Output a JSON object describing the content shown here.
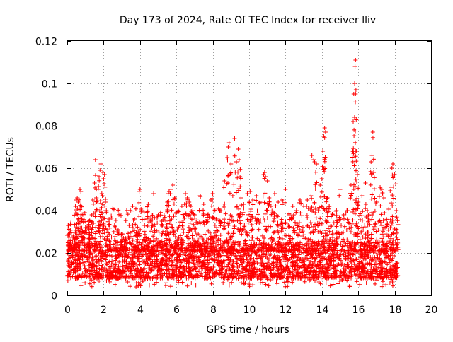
{
  "chart_data": {
    "type": "scatter",
    "title": "Day 173 of 2024, Rate Of TEC Index for receiver lliv",
    "xlabel": "GPS time / hours",
    "ylabel": "ROTI / TECUs",
    "xlim": [
      0,
      20
    ],
    "ylim": [
      0,
      0.12
    ],
    "xticks": [
      0,
      2,
      4,
      6,
      8,
      10,
      12,
      14,
      16,
      18,
      20
    ],
    "xtick_labels": [
      "0",
      "2",
      "4",
      "6",
      "8",
      "10",
      "12",
      "14",
      "16",
      "18",
      "20"
    ],
    "yticks": [
      0,
      0.02,
      0.04,
      0.06,
      0.08,
      0.1,
      0.12
    ],
    "ytick_labels": [
      "0",
      "0.02",
      "0.04",
      "0.06",
      "0.08",
      "0.1",
      "0.12"
    ],
    "grid": true,
    "marker": "+",
    "color": "#ff0000",
    "series": [
      {
        "name": "ROTI",
        "x_range": [
          0,
          18.2
        ],
        "baseline_band": [
          0.008,
          0.025
        ],
        "points": [
          [
            0.05,
            0.033
          ],
          [
            0.1,
            0.031
          ],
          [
            0.2,
            0.022
          ],
          [
            0.35,
            0.028
          ],
          [
            0.45,
            0.042
          ],
          [
            0.5,
            0.045
          ],
          [
            0.55,
            0.046
          ],
          [
            0.6,
            0.044
          ],
          [
            0.7,
            0.05
          ],
          [
            0.75,
            0.049
          ],
          [
            0.8,
            0.036
          ],
          [
            0.9,
            0.03
          ],
          [
            1.0,
            0.032
          ],
          [
            1.2,
            0.035
          ],
          [
            1.35,
            0.038
          ],
          [
            1.4,
            0.045
          ],
          [
            1.5,
            0.053
          ],
          [
            1.55,
            0.064
          ],
          [
            1.6,
            0.046
          ],
          [
            1.7,
            0.05
          ],
          [
            1.75,
            0.056
          ],
          [
            1.8,
            0.059
          ],
          [
            1.85,
            0.062
          ],
          [
            1.9,
            0.048
          ],
          [
            1.95,
            0.058
          ],
          [
            2.0,
            0.055
          ],
          [
            2.05,
            0.057
          ],
          [
            2.1,
            0.044
          ],
          [
            2.15,
            0.04
          ],
          [
            2.3,
            0.036
          ],
          [
            2.6,
            0.033
          ],
          [
            2.8,
            0.031
          ],
          [
            3.0,
            0.029
          ],
          [
            3.2,
            0.027
          ],
          [
            3.4,
            0.033
          ],
          [
            3.6,
            0.042
          ],
          [
            3.7,
            0.036
          ],
          [
            3.9,
            0.03
          ],
          [
            4.0,
            0.05
          ],
          [
            4.1,
            0.04
          ],
          [
            4.25,
            0.033
          ],
          [
            4.4,
            0.042
          ],
          [
            4.45,
            0.043
          ],
          [
            4.6,
            0.036
          ],
          [
            4.75,
            0.048
          ],
          [
            5.0,
            0.038
          ],
          [
            5.2,
            0.035
          ],
          [
            5.4,
            0.03
          ],
          [
            5.5,
            0.044
          ],
          [
            5.55,
            0.048
          ],
          [
            5.6,
            0.049
          ],
          [
            5.7,
            0.05
          ],
          [
            5.8,
            0.052
          ],
          [
            5.9,
            0.046
          ],
          [
            6.1,
            0.04
          ],
          [
            6.3,
            0.042
          ],
          [
            6.5,
            0.048
          ],
          [
            6.6,
            0.046
          ],
          [
            6.7,
            0.044
          ],
          [
            6.8,
            0.042
          ],
          [
            6.9,
            0.04
          ],
          [
            7.0,
            0.038
          ],
          [
            7.3,
            0.047
          ],
          [
            7.5,
            0.043
          ],
          [
            7.7,
            0.038
          ],
          [
            7.9,
            0.045
          ],
          [
            8.0,
            0.048
          ],
          [
            8.2,
            0.036
          ],
          [
            8.4,
            0.04
          ],
          [
            8.6,
            0.042
          ],
          [
            8.65,
            0.054
          ],
          [
            8.8,
            0.065
          ],
          [
            8.85,
            0.07
          ],
          [
            8.9,
            0.072
          ],
          [
            9.0,
            0.062
          ],
          [
            9.1,
            0.047
          ],
          [
            9.2,
            0.074
          ],
          [
            9.3,
            0.063
          ],
          [
            9.4,
            0.069
          ],
          [
            9.45,
            0.064
          ],
          [
            9.5,
            0.056
          ],
          [
            9.55,
            0.046
          ],
          [
            9.7,
            0.043
          ],
          [
            9.9,
            0.048
          ],
          [
            10.05,
            0.049
          ],
          [
            10.2,
            0.045
          ],
          [
            10.4,
            0.047
          ],
          [
            10.6,
            0.044
          ],
          [
            10.8,
            0.057
          ],
          [
            10.85,
            0.058
          ],
          [
            10.9,
            0.056
          ],
          [
            11.0,
            0.054
          ],
          [
            11.1,
            0.046
          ],
          [
            11.2,
            0.042
          ],
          [
            11.4,
            0.048
          ],
          [
            11.6,
            0.044
          ],
          [
            11.8,
            0.045
          ],
          [
            12.0,
            0.05
          ],
          [
            12.2,
            0.038
          ],
          [
            12.4,
            0.042
          ],
          [
            12.6,
            0.04
          ],
          [
            12.8,
            0.045
          ],
          [
            13.0,
            0.042
          ],
          [
            13.2,
            0.045
          ],
          [
            13.4,
            0.047
          ],
          [
            13.45,
            0.066
          ],
          [
            13.55,
            0.064
          ],
          [
            13.6,
            0.063
          ],
          [
            13.7,
            0.062
          ],
          [
            13.8,
            0.04
          ],
          [
            13.9,
            0.052
          ],
          [
            14.0,
            0.055
          ],
          [
            14.05,
            0.068
          ],
          [
            14.1,
            0.075
          ],
          [
            14.15,
            0.079
          ],
          [
            14.2,
            0.077
          ],
          [
            14.3,
            0.046
          ],
          [
            14.4,
            0.042
          ],
          [
            14.6,
            0.038
          ],
          [
            14.8,
            0.04
          ],
          [
            15.0,
            0.05
          ],
          [
            15.2,
            0.038
          ],
          [
            15.4,
            0.04
          ],
          [
            15.6,
            0.052
          ],
          [
            15.7,
            0.068
          ],
          [
            15.72,
            0.082
          ],
          [
            15.75,
            0.095
          ],
          [
            15.8,
            0.1
          ],
          [
            15.82,
            0.108
          ],
          [
            15.85,
            0.111
          ],
          [
            15.87,
            0.097
          ],
          [
            15.9,
            0.068
          ],
          [
            15.95,
            0.057
          ],
          [
            16.0,
            0.044
          ],
          [
            16.2,
            0.047
          ],
          [
            16.4,
            0.053
          ],
          [
            16.5,
            0.04
          ],
          [
            16.6,
            0.038
          ],
          [
            16.7,
            0.063
          ],
          [
            16.75,
            0.066
          ],
          [
            16.8,
            0.077
          ],
          [
            16.85,
            0.058
          ],
          [
            17.0,
            0.044
          ],
          [
            17.2,
            0.051
          ],
          [
            17.3,
            0.05
          ],
          [
            17.4,
            0.046
          ],
          [
            17.6,
            0.034
          ],
          [
            17.8,
            0.051
          ],
          [
            17.85,
            0.06
          ],
          [
            17.9,
            0.062
          ],
          [
            18.0,
            0.057
          ],
          [
            18.1,
            0.04
          ]
        ]
      }
    ]
  }
}
